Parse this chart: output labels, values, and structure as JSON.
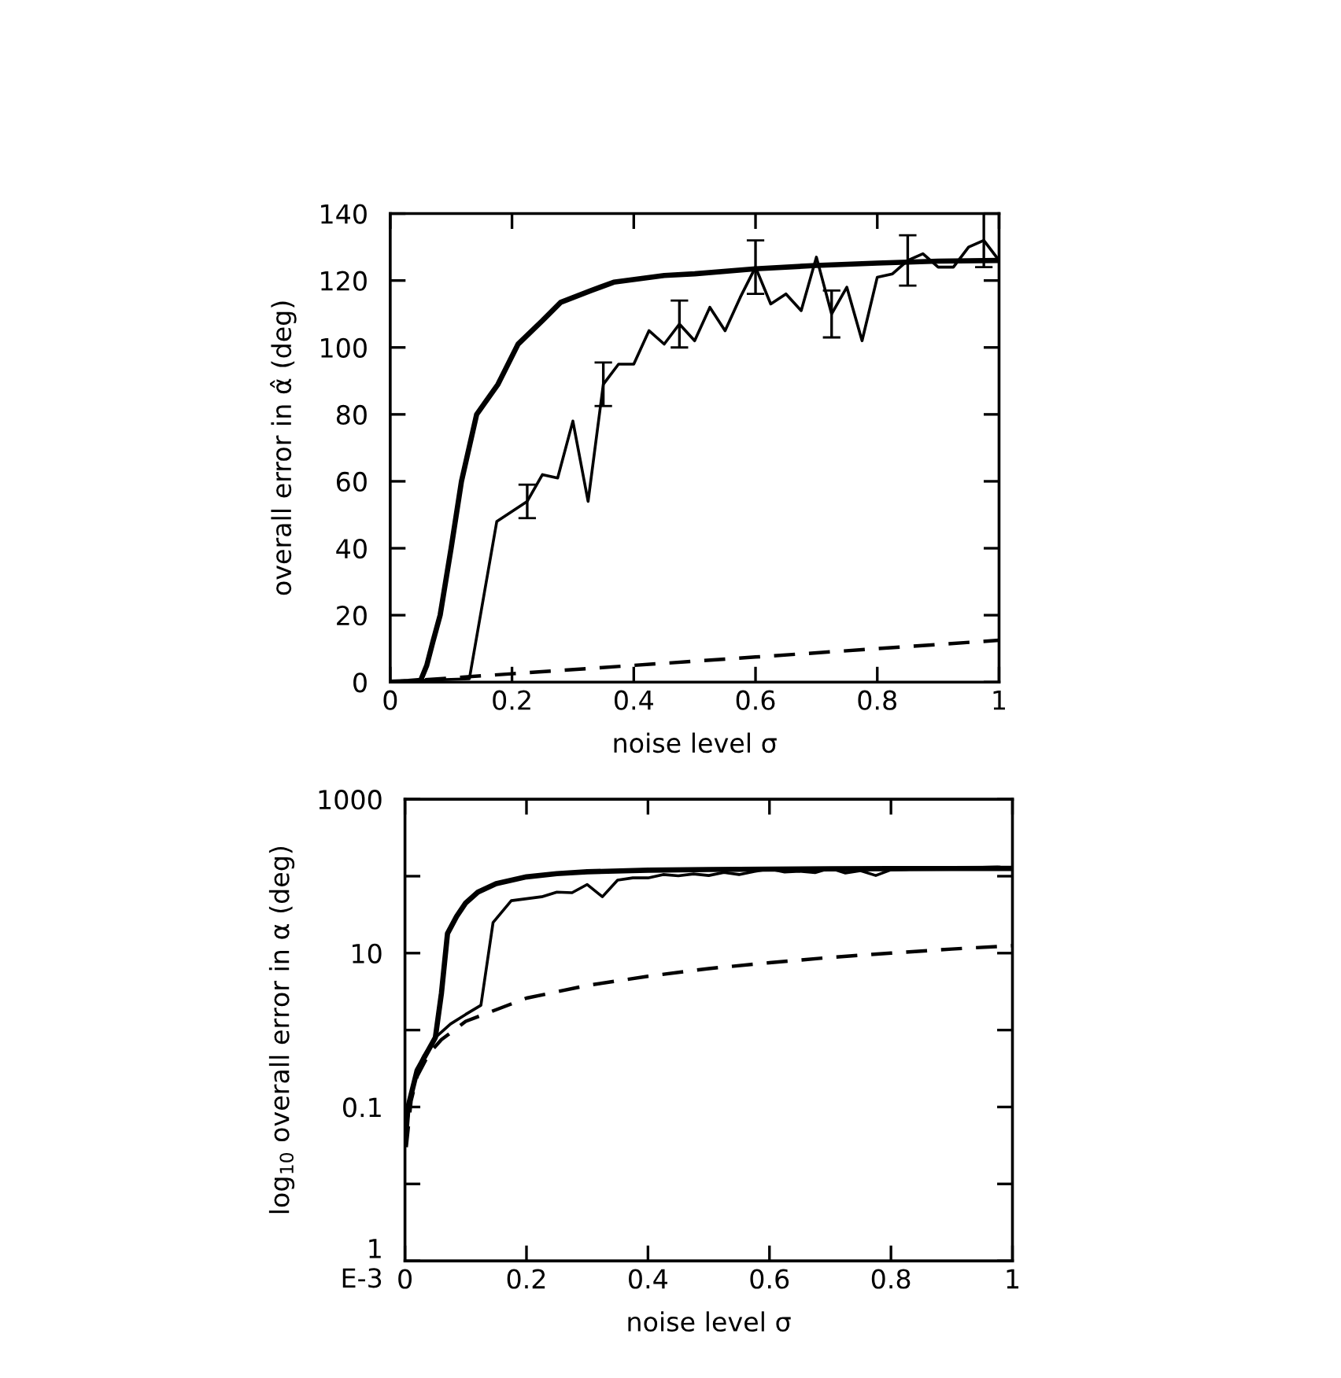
{
  "chart_data": [
    {
      "type": "line",
      "xlabel": "noise level σ",
      "ylabel": "overall error in α̂ (deg)",
      "xlim": [
        0,
        1
      ],
      "ylim": [
        0,
        140
      ],
      "xticks": [
        0,
        0.2,
        0.4,
        0.6,
        0.8,
        {
          "value": 1,
          "label": "1"
        }
      ],
      "yticks": [
        0,
        20,
        40,
        60,
        80,
        100,
        120,
        140
      ],
      "marker": "none",
      "series": [
        {
          "color": "#000000",
          "line_style": "solid",
          "x": [
            0,
            0.03,
            0.05,
            0.06,
            0.07,
            0.082,
            0.1,
            0.117,
            0.142,
            0.177,
            0.21,
            0.25,
            0.28,
            0.33,
            0.367,
            0.45,
            0.5,
            0.6,
            0.7,
            0.8,
            0.9,
            1.0
          ],
          "values": [
            0,
            0.2,
            0.5,
            5,
            12,
            20,
            40,
            60,
            80,
            89,
            101,
            108,
            113.5,
            117,
            119.5,
            121.5,
            122,
            123.5,
            124.5,
            125.2,
            125.8,
            126
          ]
        },
        {
          "color": "#000000",
          "line_style": "solid",
          "x": [
            0,
            0.05,
            0.13,
            0.175,
            0.2,
            0.225,
            0.25,
            0.275,
            0.3,
            0.325,
            0.35,
            0.375,
            0.4,
            0.425,
            0.45,
            0.475,
            0.5,
            0.525,
            0.55,
            0.575,
            0.6,
            0.625,
            0.65,
            0.675,
            0.7,
            0.725,
            0.75,
            0.775,
            0.8,
            0.825,
            0.85,
            0.875,
            0.9,
            0.925,
            0.95,
            0.975,
            1.0
          ],
          "values": [
            0,
            0.5,
            1,
            48,
            51,
            54,
            62,
            61,
            78,
            54,
            89,
            95,
            95,
            105,
            101,
            107,
            102,
            112,
            105,
            115,
            124,
            113,
            116,
            111,
            127,
            110,
            118,
            102,
            121,
            122,
            126,
            128,
            124,
            124,
            130,
            132,
            126
          ],
          "errors": [
            null,
            null,
            null,
            null,
            null,
            5,
            null,
            null,
            null,
            null,
            6.5,
            null,
            null,
            null,
            null,
            7,
            null,
            null,
            null,
            null,
            8,
            null,
            null,
            null,
            null,
            7,
            null,
            null,
            null,
            null,
            7.5,
            null,
            null,
            null,
            null,
            8,
            null
          ]
        },
        {
          "color": "#000000",
          "line_style": "dashed",
          "x": [
            0,
            0.2,
            0.4,
            0.6,
            0.8,
            1.0
          ],
          "values": [
            0,
            2.5,
            5,
            7.5,
            10,
            12.5
          ]
        }
      ]
    },
    {
      "type": "line",
      "xlabel": "noise level σ",
      "ylabel": "log$_{10}$ overall error in α (deg)",
      "log": "y",
      "xlim": [
        0,
        1
      ],
      "ylim": [
        0.001,
        1000
      ],
      "xticks": [
        0,
        0.2,
        0.4,
        0.6,
        0.8,
        {
          "value": 1,
          "label": "1"
        }
      ],
      "yticks": [
        {
          "value": 0.001,
          "label": "1\nE-3"
        },
        {
          "value": 0.01,
          "label": null
        },
        0.1,
        {
          "value": 1,
          "label": null
        },
        10,
        {
          "value": 100,
          "label": null
        },
        1000
      ],
      "marker": "none",
      "series": [
        {
          "color": "#000000",
          "line_style": "solid",
          "x": [
            0.002,
            0.005,
            0.02,
            0.05,
            0.06,
            0.07,
            0.085,
            0.1,
            0.12,
            0.15,
            0.2,
            0.25,
            0.3,
            0.4,
            0.5,
            0.6,
            0.7,
            0.8,
            0.9,
            1.0
          ],
          "values": [
            0.05,
            0.1,
            0.3,
            0.8,
            3,
            18,
            30,
            45,
            62,
            80,
            98,
            108,
            114,
            119.5,
            122,
            123.5,
            124.5,
            125.2,
            125.8,
            126
          ]
        },
        {
          "color": "#000000",
          "line_style": "solid",
          "x": [
            0.002,
            0.01,
            0.02,
            0.03,
            0.04,
            0.05,
            0.075,
            0.1,
            0.125,
            0.145,
            0.175,
            0.2,
            0.225,
            0.25,
            0.275,
            0.3,
            0.325,
            0.35,
            0.375,
            0.4,
            0.425,
            0.45,
            0.475,
            0.5,
            0.525,
            0.55,
            0.575,
            0.6,
            0.625,
            0.65,
            0.675,
            0.7,
            0.725,
            0.75,
            0.775,
            0.8,
            0.825,
            0.85,
            0.875,
            0.9,
            0.925,
            0.95,
            0.975,
            1.0
          ],
          "values": [
            0.05,
            0.15,
            0.3,
            0.45,
            0.6,
            0.8,
            1.2,
            1.6,
            2.1,
            25,
            48,
            51,
            54,
            62,
            61,
            78,
            54,
            89,
            95,
            95,
            105,
            101,
            107,
            102,
            112,
            105,
            115,
            124,
            113,
            116,
            111,
            127,
            110,
            118,
            102,
            121,
            122,
            126,
            128,
            124,
            124,
            130,
            132,
            126
          ]
        },
        {
          "color": "#000000",
          "line_style": "dashed",
          "x": [
            0.002,
            0.01,
            0.02,
            0.04,
            0.06,
            0.1,
            0.2,
            0.3,
            0.4,
            0.5,
            0.6,
            0.7,
            0.8,
            0.9,
            1.0
          ],
          "values": [
            0.03,
            0.12,
            0.25,
            0.5,
            0.75,
            1.3,
            2.6,
            3.8,
            5,
            6.3,
            7.5,
            8.8,
            10,
            11.3,
            12.5
          ]
        }
      ]
    }
  ]
}
